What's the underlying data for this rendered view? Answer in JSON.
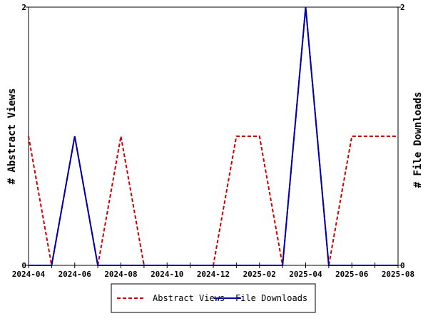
{
  "chart_data": {
    "type": "line",
    "x": [
      "2024-04",
      "2024-05",
      "2024-06",
      "2024-07",
      "2024-08",
      "2024-09",
      "2024-10",
      "2024-11",
      "2024-12",
      "2025-01",
      "2025-02",
      "2025-03",
      "2025-04",
      "2025-05",
      "2025-06",
      "2025-07",
      "2025-08"
    ],
    "x_tick_labels": [
      "2024-04",
      "2024-06",
      "2024-08",
      "2024-10",
      "2024-12",
      "2025-02",
      "2025-04",
      "2025-06",
      "2025-08"
    ],
    "series": [
      {
        "name": "Abstract Views",
        "color": "#cc0000",
        "dash": "dashed",
        "values": [
          1,
          0,
          1,
          0,
          1,
          0,
          0,
          0,
          0,
          1,
          1,
          0,
          2,
          0,
          1,
          1,
          1
        ]
      },
      {
        "name": "File Downloads",
        "color": "#0000aa",
        "dash": "solid",
        "values": [
          0,
          0,
          1,
          0,
          0,
          0,
          0,
          0,
          0,
          0,
          0,
          0,
          2,
          0,
          0,
          0,
          0
        ]
      }
    ],
    "ylabel_left": "# Abstract Views",
    "ylabel_right": "# File Downloads",
    "ylim": [
      0,
      2
    ],
    "y_ticks": [
      0,
      2
    ],
    "legend_position": "bottom",
    "grid": false
  }
}
